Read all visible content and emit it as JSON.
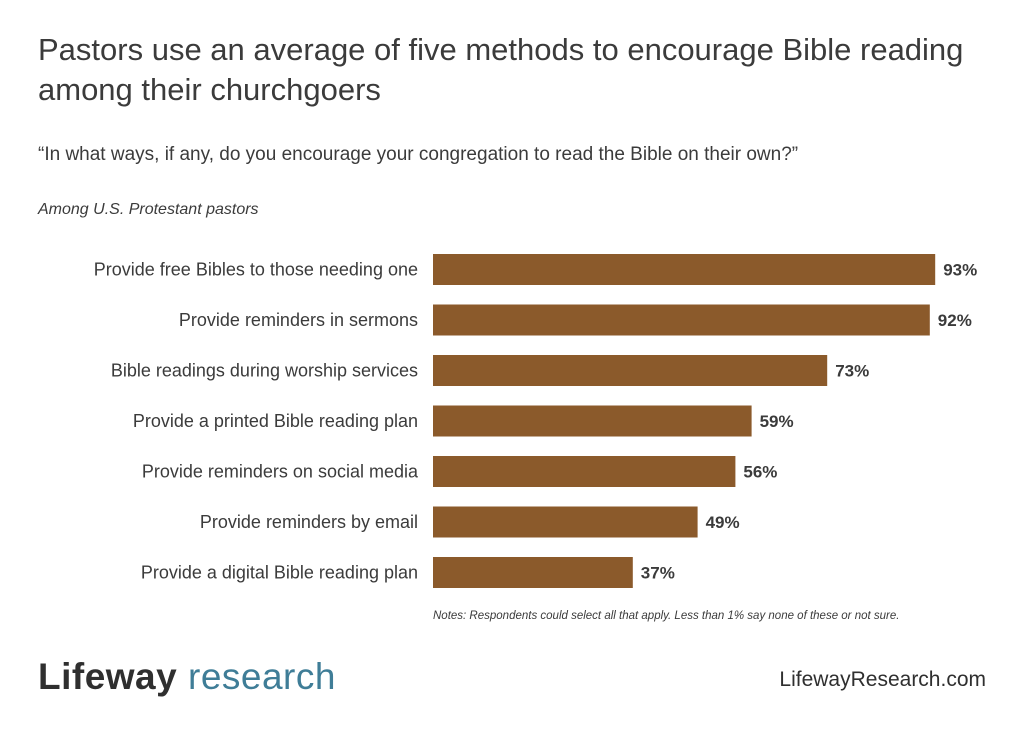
{
  "header": {
    "title": "Pastors use an average of five methods to encourage Bible reading among their churchgoers",
    "question": "“In what ways, if any, do you encourage your congregation to read the Bible on their own?”",
    "population": "Among U.S. Protestant pastors"
  },
  "chart_data": {
    "type": "bar",
    "orientation": "horizontal",
    "categories": [
      "Provide free Bibles to those needing one",
      "Provide reminders in sermons",
      "Bible readings during worship services",
      "Provide a printed Bible reading plan",
      "Provide reminders on social media",
      "Provide reminders by email",
      "Provide a digital Bible reading plan"
    ],
    "values": [
      93,
      92,
      73,
      59,
      56,
      49,
      37
    ],
    "value_labels": [
      "93%",
      "92%",
      "73%",
      "59%",
      "56%",
      "49%",
      "37%"
    ],
    "xlim": [
      0,
      100
    ],
    "bar_color": "#8b5a2b",
    "grid": false,
    "legend": "none"
  },
  "footer": {
    "notes": "Notes: Respondents could select all that apply. Less than 1% say none of these or not sure.",
    "logo_part1": "Lifeway",
    "logo_part2": "research",
    "site": "LifewayResearch.com"
  },
  "colors": {
    "bar": "#8b5a2b",
    "text": "#3b3b3b",
    "logo_accent": "#3f7d97"
  }
}
